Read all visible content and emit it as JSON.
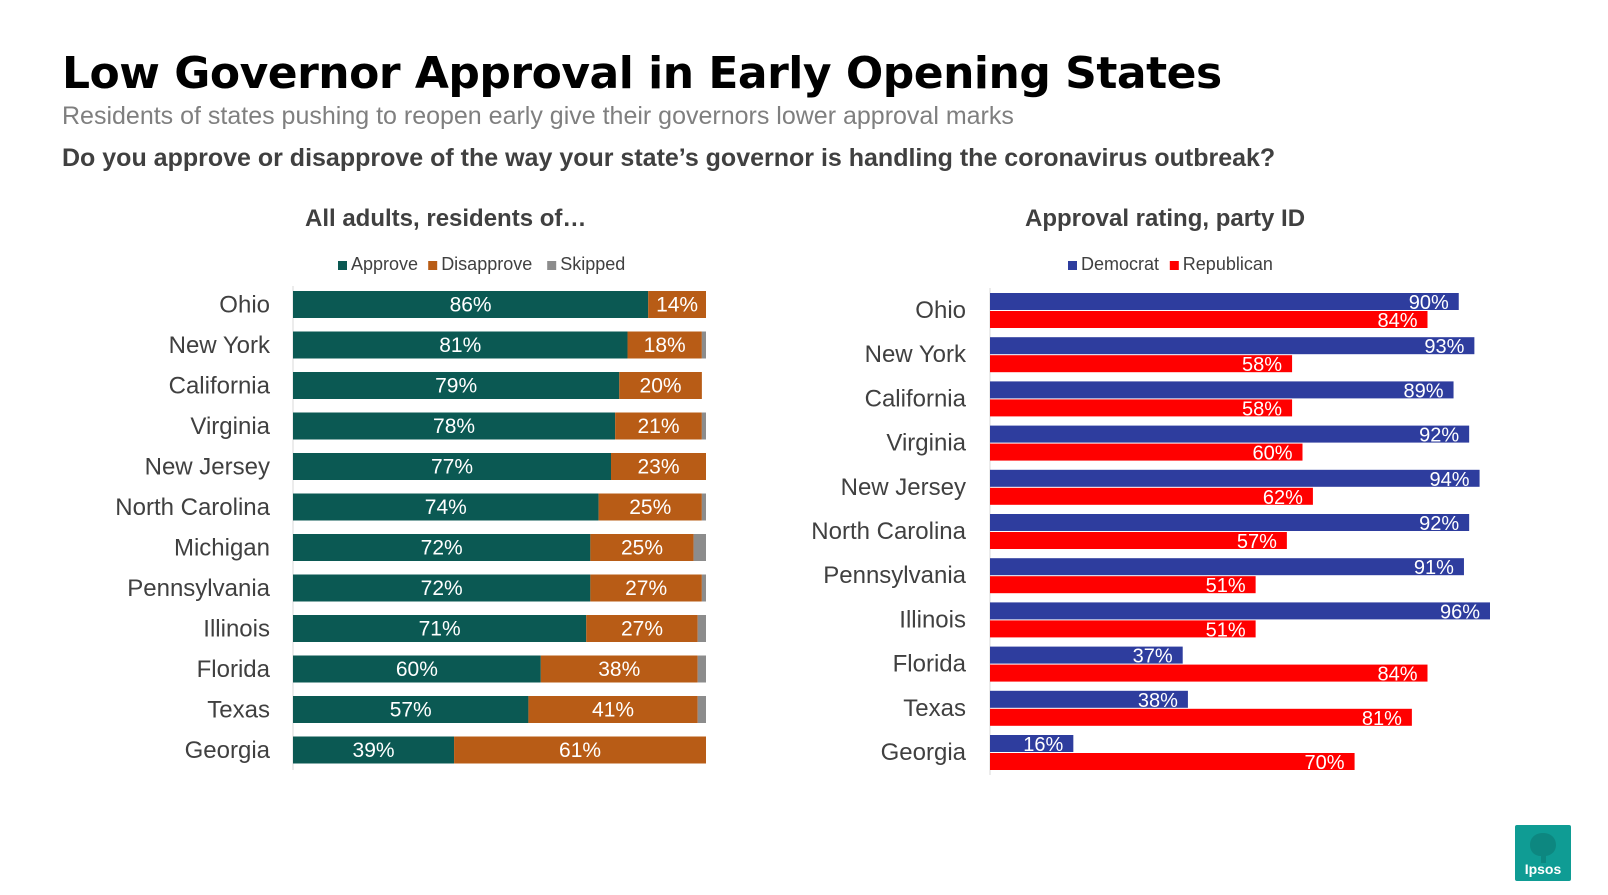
{
  "title": "Low Governor Approval in Early Opening States",
  "subtitle": "Residents of states pushing to reopen early give their governors lower approval marks",
  "question": "Do you approve or disapprove of the way your state’s governor is handling the coronavirus outbreak?",
  "logo_text": "Ipsos",
  "colors": {
    "approve": "#0b5953",
    "disapprove": "#b85c16",
    "skipped": "#8c8c8c",
    "democrat": "#2e3d9e",
    "republican": "#ff0000",
    "logo": "#0f9c94"
  },
  "chart_data": [
    {
      "type": "bar",
      "orientation": "horizontal",
      "stacked": true,
      "title": "All adults, residents of…",
      "legend_position": "top",
      "categories": [
        "Ohio",
        "New York",
        "California",
        "Virginia",
        "New Jersey",
        "North Carolina",
        "Michigan",
        "Pennsylvania",
        "Illinois",
        "Florida",
        "Texas",
        "Georgia"
      ],
      "series": [
        {
          "name": "Approve",
          "values": [
            86,
            81,
            79,
            78,
            77,
            74,
            72,
            72,
            71,
            60,
            57,
            39
          ],
          "labels": [
            "86%",
            "81%",
            "79%",
            "78%",
            "77%",
            "74%",
            "72%",
            "72%",
            "71%",
            "60%",
            "57%",
            "39%"
          ]
        },
        {
          "name": "Disapprove",
          "values": [
            14,
            18,
            20,
            21,
            23,
            25,
            25,
            27,
            27,
            38,
            41,
            61
          ],
          "labels": [
            "14%",
            "18%",
            "20%",
            "21%",
            "23%",
            "25%",
            "25%",
            "27%",
            "27%",
            "38%",
            "41%",
            "61%"
          ]
        },
        {
          "name": "Skipped",
          "values": [
            0,
            1,
            0,
            1,
            0,
            1,
            3,
            1,
            2,
            2,
            2,
            0
          ]
        }
      ],
      "xlim": [
        0,
        100
      ]
    },
    {
      "type": "bar",
      "orientation": "horizontal",
      "stacked": false,
      "title": "Approval rating, party ID",
      "legend_position": "top",
      "categories": [
        "Ohio",
        "New York",
        "California",
        "Virginia",
        "New Jersey",
        "North Carolina",
        "Pennsylvania",
        "Illinois",
        "Florida",
        "Texas",
        "Georgia"
      ],
      "series": [
        {
          "name": "Democrat",
          "values": [
            90,
            93,
            89,
            92,
            94,
            92,
            91,
            96,
            37,
            38,
            16
          ],
          "labels": [
            "90%",
            "93%",
            "89%",
            "92%",
            "94%",
            "92%",
            "91%",
            "96%",
            "37%",
            "38%",
            "16%"
          ]
        },
        {
          "name": "Republican",
          "values": [
            84,
            58,
            58,
            60,
            62,
            57,
            51,
            51,
            84,
            81,
            70
          ],
          "labels": [
            "84%",
            "58%",
            "58%",
            "60%",
            "62%",
            "57%",
            "51%",
            "51%",
            "84%",
            "81%",
            "70%"
          ]
        }
      ],
      "xlim": [
        0,
        96
      ]
    }
  ]
}
